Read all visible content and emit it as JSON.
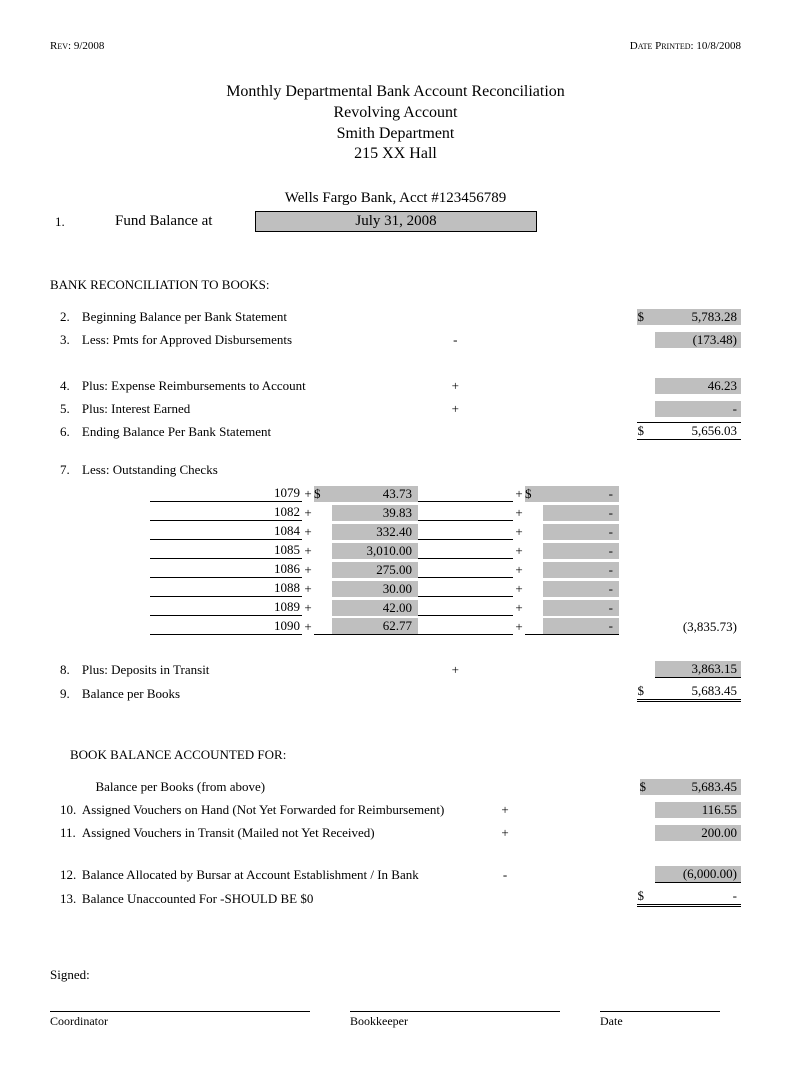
{
  "meta": {
    "rev_label": "Rev:",
    "rev_value": "9/2008",
    "printed_label": "Date Printed:",
    "printed_value": "10/8/2008"
  },
  "header": {
    "line1": "Monthly Departmental Bank Account Reconciliation",
    "line2": "Revolving Account",
    "line3": "Smith Department",
    "line4": "215 XX Hall"
  },
  "bank_line": "Wells Fargo Bank, Acct #123456789",
  "fund": {
    "num": "1.",
    "label": "Fund Balance at",
    "date": "July 31, 2008"
  },
  "section_bank": "BANK RECONCILIATION TO BOOKS:",
  "lines": {
    "l2": {
      "n": "2.",
      "t": "Beginning Balance per Bank Statement",
      "op": "",
      "d": "$",
      "a": "5,783.28"
    },
    "l3": {
      "n": "3.",
      "t": "Less: Pmts for Approved Disbursements",
      "op": "-",
      "d": "",
      "a": "(173.48)"
    },
    "l4": {
      "n": "4.",
      "t": "Plus: Expense Reimbursements to Account",
      "op": "+",
      "d": "",
      "a": "46.23"
    },
    "l5": {
      "n": "5.",
      "t": "Plus: Interest Earned",
      "op": "+",
      "d": "",
      "a": "-"
    },
    "l6": {
      "n": "6.",
      "t": "Ending Balance Per Bank Statement",
      "op": "",
      "d": "$",
      "a": "5,656.03"
    },
    "l7": {
      "n": "7.",
      "t": "Less: Outstanding Checks"
    },
    "l8": {
      "n": "8.",
      "t": "Plus: Deposits in Transit",
      "op": "+",
      "d": "",
      "a": "3,863.15"
    },
    "l9": {
      "n": "9.",
      "t": "Balance per Books",
      "op": "",
      "d": "$",
      "a": "5,683.45"
    }
  },
  "checks_total": "(3,835.73)",
  "checks": [
    {
      "num": "1079",
      "d1": "$",
      "a1": "43.73",
      "d2": "$",
      "a2": "-"
    },
    {
      "num": "1082",
      "d1": "",
      "a1": "39.83",
      "d2": "",
      "a2": "-"
    },
    {
      "num": "1084",
      "d1": "",
      "a1": "332.40",
      "d2": "",
      "a2": "-"
    },
    {
      "num": "1085",
      "d1": "",
      "a1": "3,010.00",
      "d2": "",
      "a2": "-"
    },
    {
      "num": "1086",
      "d1": "",
      "a1": "275.00",
      "d2": "",
      "a2": "-"
    },
    {
      "num": "1088",
      "d1": "",
      "a1": "30.00",
      "d2": "",
      "a2": "-"
    },
    {
      "num": "1089",
      "d1": "",
      "a1": "42.00",
      "d2": "",
      "a2": "-"
    },
    {
      "num": "1090",
      "d1": "",
      "a1": "62.77",
      "d2": "",
      "a2": "-"
    }
  ],
  "section_book": "BOOK BALANCE ACCOUNTED FOR:",
  "book": {
    "b0": {
      "n": "",
      "t": "Balance per Books (from above)",
      "op": "",
      "d": "$",
      "a": "5,683.45"
    },
    "b10": {
      "n": "10.",
      "t": "Assigned Vouchers on Hand (Not Yet Forwarded for Reimbursement)",
      "op": "+",
      "d": "",
      "a": "116.55"
    },
    "b11": {
      "n": "11.",
      "t": "Assigned Vouchers in Transit (Mailed not Yet Received)",
      "op": "+",
      "d": "",
      "a": "200.00"
    },
    "b12": {
      "n": "12.",
      "t": "Balance Allocated by Bursar at Account Establishment / In Bank",
      "op": "-",
      "d": "",
      "a": "(6,000.00)"
    },
    "b13": {
      "n": "13.",
      "t": "Balance Unaccounted For -SHOULD BE $0",
      "op": "",
      "d": "$",
      "a": "-"
    }
  },
  "signed": "Signed:",
  "sig": {
    "coord": "Coordinator",
    "book": "Bookkeeper",
    "date": "Date"
  },
  "colors": {
    "shade": "#bfbfbf",
    "text": "#000000",
    "bg": "#ffffff"
  }
}
